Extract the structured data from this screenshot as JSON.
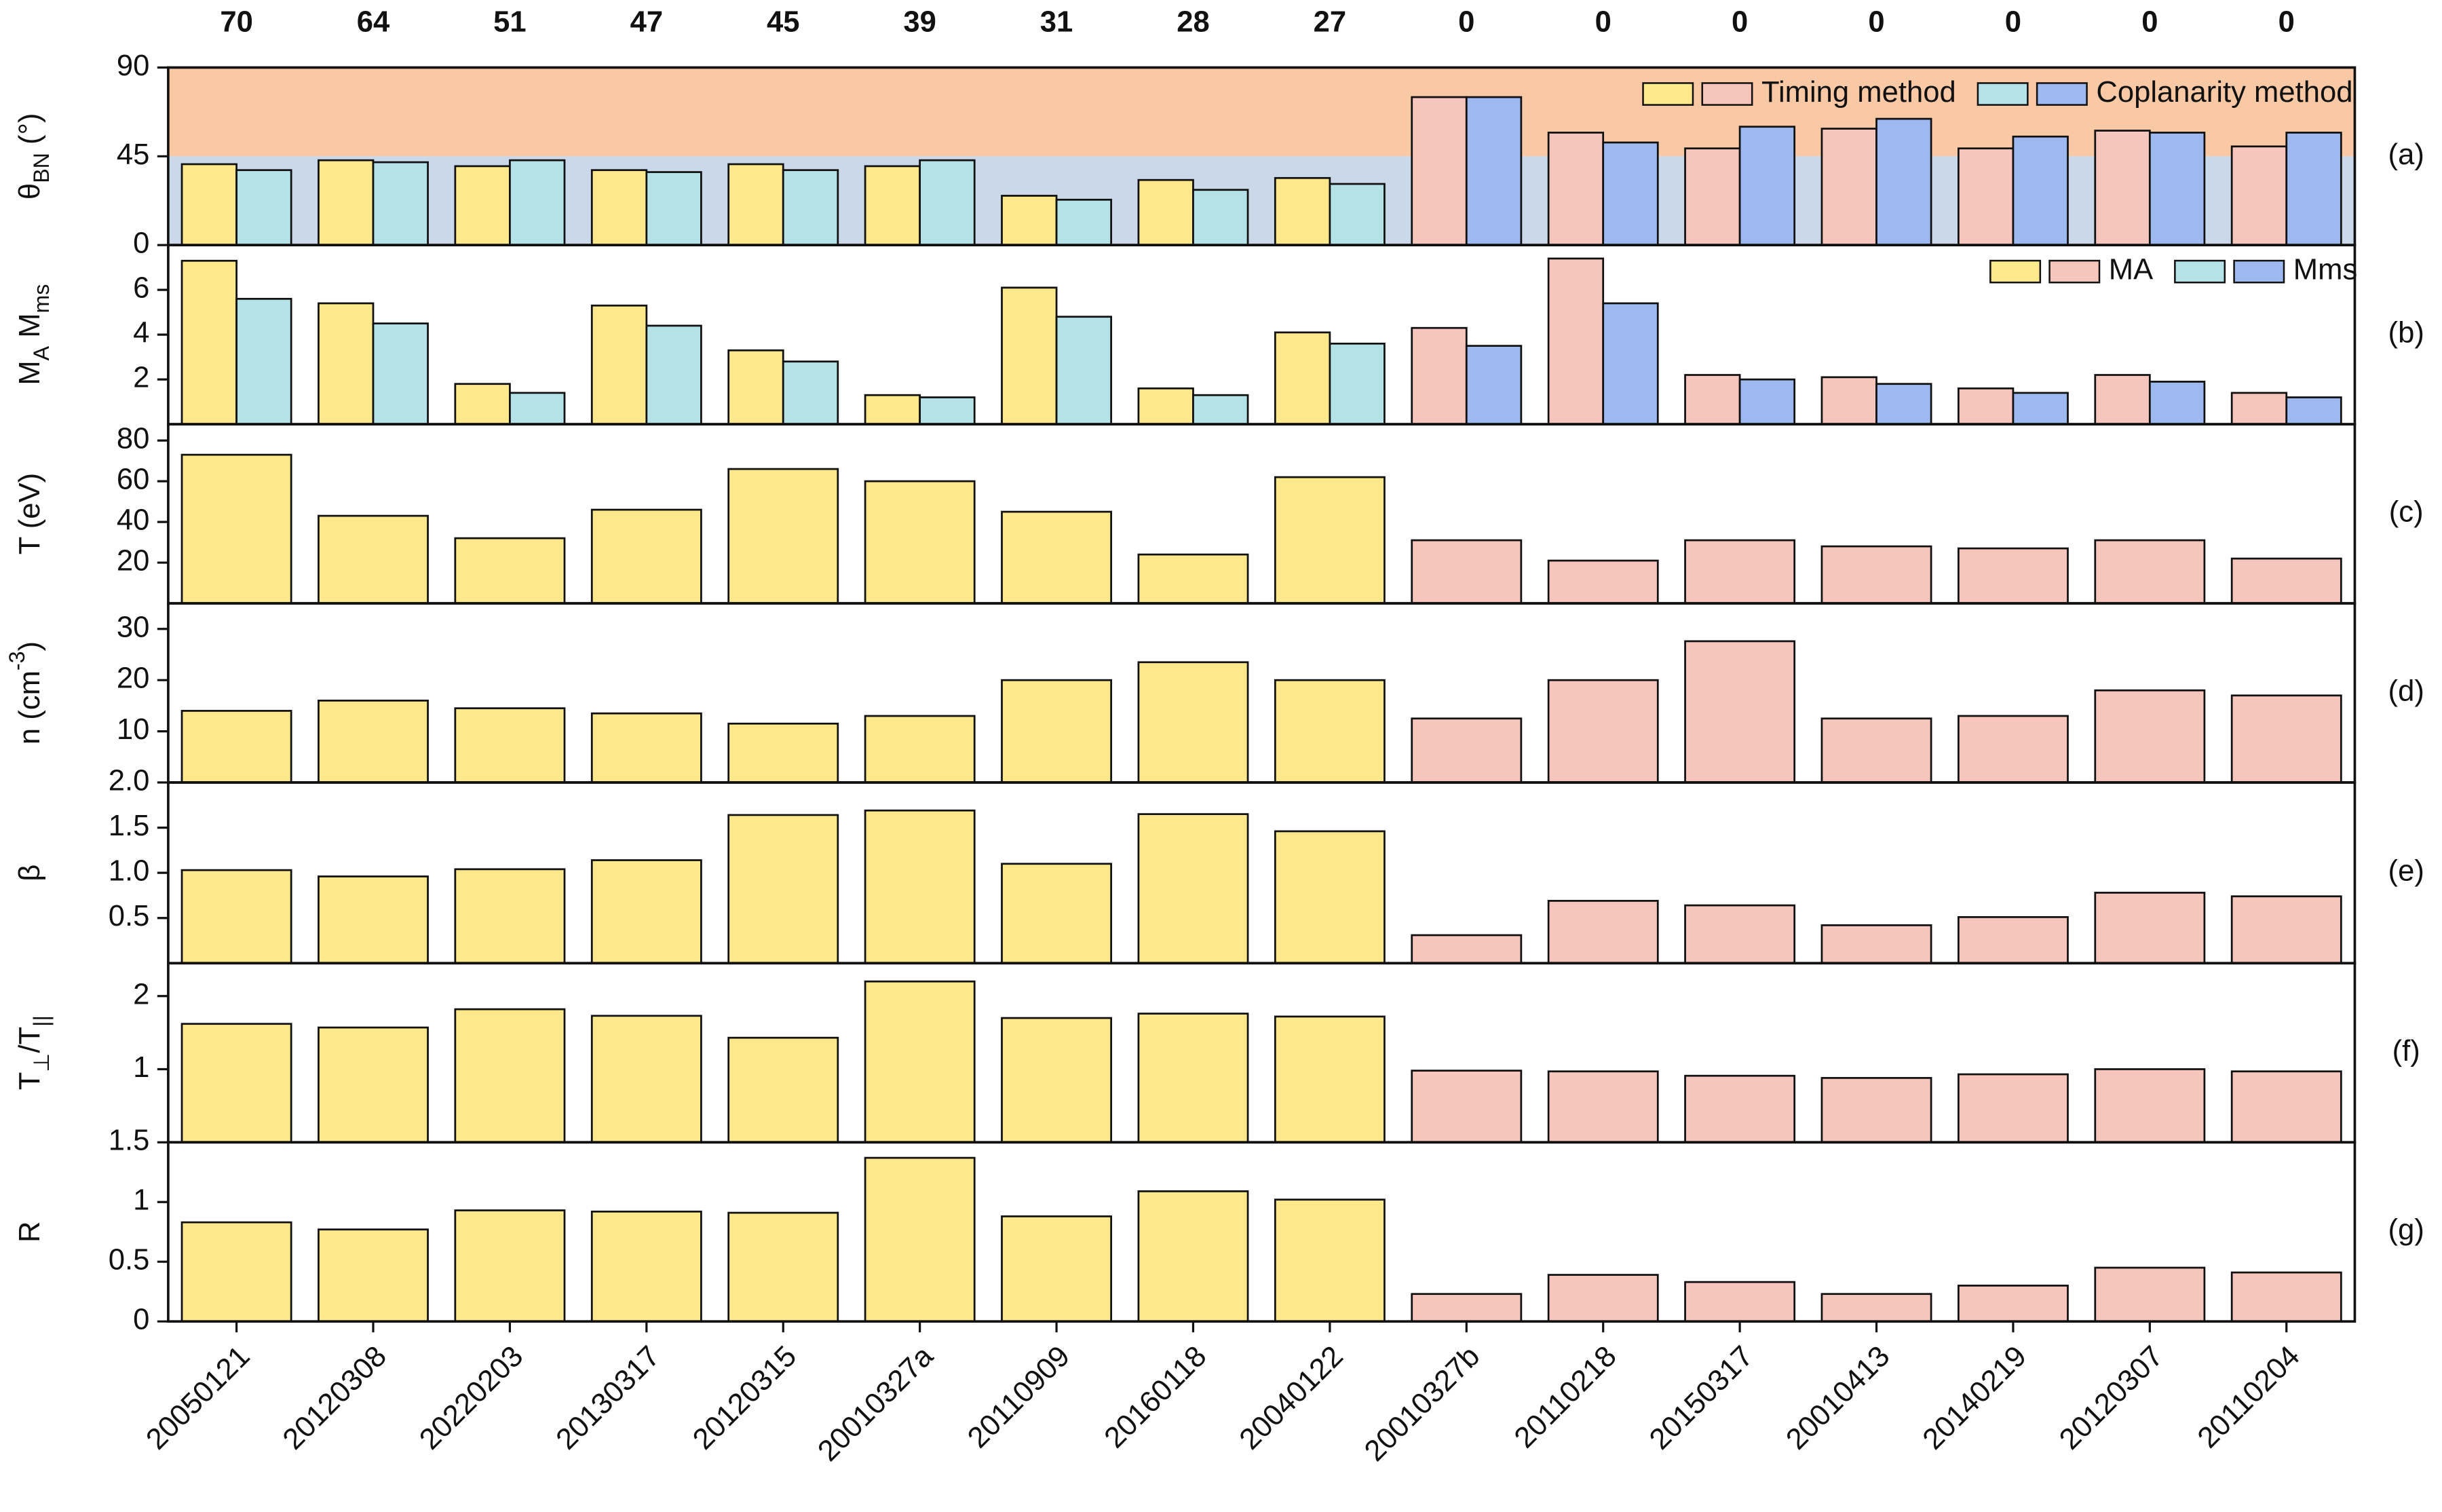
{
  "chart_data": [
    {
      "type": "bar",
      "panel_label": "(a)",
      "ylabel": [
        {
          "text": "θ"
        },
        {
          "text": "BN",
          "sub": true
        },
        {
          "text": " (°)"
        }
      ],
      "annotations": [
        70,
        64,
        51,
        47,
        45,
        39,
        31,
        28,
        27,
        0,
        0,
        0,
        0,
        0,
        0,
        0
      ],
      "annotation_color": "#e8413e",
      "ylim": [
        0,
        90
      ],
      "yticks": [
        0,
        45,
        90
      ],
      "shading": [
        {
          "from": 45,
          "to": 90,
          "color": "#f9c9a6"
        },
        {
          "from": 0,
          "to": 45,
          "color": "#cad8ea"
        }
      ],
      "legend": true,
      "series": [
        {
          "name": "Timing method",
          "colors": [
            "#fde98b",
            "#fde98b",
            "#fde98b",
            "#fde98b",
            "#fde98b",
            "#fde98b",
            "#fde98b",
            "#fde98b",
            "#fde98b",
            "#f6c6bd",
            "#f6c6bd",
            "#f6c6bd",
            "#f6c6bd",
            "#f6c6bd",
            "#f6c6bd",
            "#f6c6bd"
          ],
          "values": [
            41,
            43,
            40,
            38,
            41,
            40,
            25,
            33,
            34,
            75,
            57,
            49,
            59,
            49,
            58,
            50
          ]
        },
        {
          "name": "Coplanarity method",
          "colors": [
            "#b4e2e6",
            "#b4e2e6",
            "#b4e2e6",
            "#b4e2e6",
            "#b4e2e6",
            "#b4e2e6",
            "#b4e2e6",
            "#b4e2e6",
            "#b4e2e6",
            "#9db9f0",
            "#9db9f0",
            "#9db9f0",
            "#9db9f0",
            "#9db9f0",
            "#9db9f0",
            "#9db9f0"
          ],
          "values": [
            38,
            42,
            43,
            37,
            38,
            43,
            23,
            28,
            31,
            75,
            52,
            60,
            64,
            55,
            57,
            57
          ]
        }
      ]
    },
    {
      "type": "bar",
      "panel_label": "(b)",
      "ylabel": [
        {
          "text": "M"
        },
        {
          "text": "A",
          "sub": true
        },
        {
          "text": " M"
        },
        {
          "text": "ms",
          "sub": true
        }
      ],
      "ylim": [
        0,
        8
      ],
      "yticks": [
        2,
        4,
        6
      ],
      "legend": true,
      "series": [
        {
          "name": "MA",
          "colors": [
            "#fde98b",
            "#fde98b",
            "#fde98b",
            "#fde98b",
            "#fde98b",
            "#fde98b",
            "#fde98b",
            "#fde98b",
            "#fde98b",
            "#f6c6bd",
            "#f6c6bd",
            "#f6c6bd",
            "#f6c6bd",
            "#f6c6bd",
            "#f6c6bd",
            "#f6c6bd"
          ],
          "values": [
            7.3,
            5.4,
            1.8,
            5.3,
            3.3,
            1.3,
            6.1,
            1.6,
            4.1,
            4.3,
            7.4,
            2.2,
            2.1,
            1.6,
            2.2,
            1.4
          ]
        },
        {
          "name": "Mms",
          "colors": [
            "#b4e2e6",
            "#b4e2e6",
            "#b4e2e6",
            "#b4e2e6",
            "#b4e2e6",
            "#b4e2e6",
            "#b4e2e6",
            "#b4e2e6",
            "#b4e2e6",
            "#9db9f0",
            "#9db9f0",
            "#9db9f0",
            "#9db9f0",
            "#9db9f0",
            "#9db9f0",
            "#9db9f0"
          ],
          "values": [
            5.6,
            4.5,
            1.4,
            4.4,
            2.8,
            1.2,
            4.8,
            1.3,
            3.6,
            3.5,
            5.4,
            2.0,
            1.8,
            1.4,
            1.9,
            1.2
          ]
        }
      ]
    },
    {
      "type": "bar",
      "panel_label": "(c)",
      "ylabel": [
        {
          "text": "T (eV)"
        }
      ],
      "ylim": [
        0,
        88
      ],
      "yticks": [
        20,
        40,
        60,
        80
      ],
      "series": [
        {
          "colors": [
            "#fde98b",
            "#fde98b",
            "#fde98b",
            "#fde98b",
            "#fde98b",
            "#fde98b",
            "#fde98b",
            "#fde98b",
            "#fde98b",
            "#f6c6bd",
            "#f6c6bd",
            "#f6c6bd",
            "#f6c6bd",
            "#f6c6bd",
            "#f6c6bd",
            "#f6c6bd"
          ],
          "values": [
            73,
            43,
            32,
            46,
            66,
            60,
            45,
            24,
            62,
            31,
            21,
            31,
            28,
            27,
            31,
            22
          ]
        }
      ]
    },
    {
      "type": "bar",
      "panel_label": "(d)",
      "ylabel": [
        {
          "text": "n (cm"
        },
        {
          "text": "-3",
          "sup": true
        },
        {
          "text": ")"
        }
      ],
      "ylim": [
        0,
        35
      ],
      "yticks": [
        10,
        20,
        30
      ],
      "series": [
        {
          "colors": [
            "#fde98b",
            "#fde98b",
            "#fde98b",
            "#fde98b",
            "#fde98b",
            "#fde98b",
            "#fde98b",
            "#fde98b",
            "#fde98b",
            "#f6c6bd",
            "#f6c6bd",
            "#f6c6bd",
            "#f6c6bd",
            "#f6c6bd",
            "#f6c6bd",
            "#f6c6bd"
          ],
          "values": [
            14,
            16,
            14.5,
            13.5,
            11.5,
            13,
            20,
            23.5,
            20,
            12.5,
            20,
            27.6,
            12.5,
            13,
            18,
            17
          ]
        }
      ]
    },
    {
      "type": "bar",
      "panel_label": "(e)",
      "ylabel": [
        {
          "text": "β"
        }
      ],
      "ylim": [
        0,
        2
      ],
      "yticks": [
        0.5,
        {
          "value": 1,
          "label": "1.0"
        },
        1.5,
        {
          "value": 2,
          "label": "2.0"
        }
      ],
      "series": [
        {
          "colors": [
            "#fde98b",
            "#fde98b",
            "#fde98b",
            "#fde98b",
            "#fde98b",
            "#fde98b",
            "#fde98b",
            "#fde98b",
            "#fde98b",
            "#f6c6bd",
            "#f6c6bd",
            "#f6c6bd",
            "#f6c6bd",
            "#f6c6bd",
            "#f6c6bd",
            "#f6c6bd"
          ],
          "values": [
            1.03,
            0.96,
            1.04,
            1.14,
            1.64,
            1.69,
            1.1,
            1.65,
            1.46,
            0.31,
            0.69,
            0.64,
            0.42,
            0.51,
            0.78,
            0.74
          ]
        }
      ]
    },
    {
      "type": "bar",
      "panel_label": "(f)",
      "ylabel": [
        {
          "text": "T"
        },
        {
          "text": "⊥",
          "sub": true
        },
        {
          "text": "/T"
        },
        {
          "text": "||",
          "sub": true
        }
      ],
      "ylim": [
        0,
        2.45
      ],
      "yticks": [
        1,
        2
      ],
      "series": [
        {
          "colors": [
            "#fde98b",
            "#fde98b",
            "#fde98b",
            "#fde98b",
            "#fde98b",
            "#fde98b",
            "#fde98b",
            "#fde98b",
            "#fde98b",
            "#f6c6bd",
            "#f6c6bd",
            "#f6c6bd",
            "#f6c6bd",
            "#f6c6bd",
            "#f6c6bd",
            "#f6c6bd"
          ],
          "values": [
            1.62,
            1.57,
            1.82,
            1.73,
            1.43,
            2.2,
            1.7,
            1.76,
            1.72,
            0.98,
            0.97,
            0.91,
            0.88,
            0.93,
            1.0,
            0.97
          ]
        }
      ]
    },
    {
      "type": "bar",
      "panel_label": "(g)",
      "ylabel": [
        {
          "text": "R"
        }
      ],
      "ylim": [
        0,
        1.5
      ],
      "yticks": [
        0,
        0.5,
        1,
        1.5
      ],
      "categories": [
        "20050121",
        "20120308",
        "20220203",
        "20130317",
        "20120315",
        "20010327a",
        "20110909",
        "20160118",
        "20040122",
        "20010327b",
        "20110218",
        "20150317",
        "20010413",
        "20140219",
        "20120307",
        "20110204"
      ],
      "series": [
        {
          "colors": [
            "#fde98b",
            "#fde98b",
            "#fde98b",
            "#fde98b",
            "#fde98b",
            "#fde98b",
            "#fde98b",
            "#fde98b",
            "#fde98b",
            "#f6c6bd",
            "#f6c6bd",
            "#f6c6bd",
            "#f6c6bd",
            "#f6c6bd",
            "#f6c6bd",
            "#f6c6bd"
          ],
          "values": [
            0.83,
            0.77,
            0.93,
            0.92,
            0.91,
            1.37,
            0.88,
            1.09,
            1.02,
            0.23,
            0.39,
            0.33,
            0.23,
            0.3,
            0.45,
            0.41
          ]
        }
      ]
    }
  ]
}
